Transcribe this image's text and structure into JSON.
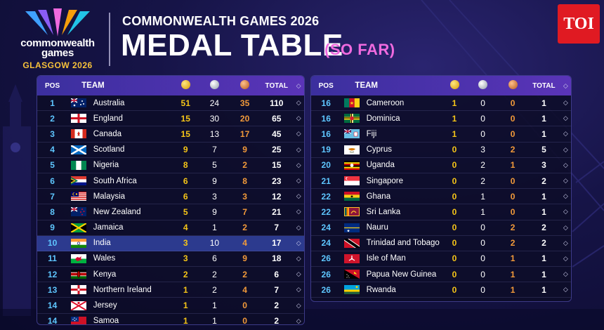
{
  "brand": {
    "line1": "commonwealth",
    "line2": "games",
    "line3": "GLASGOW 2026"
  },
  "header": {
    "subtitle": "COMMONWEALTH GAMES 2026",
    "title": "MEDAL TABLE",
    "tag": "(SO FAR)"
  },
  "publisher": {
    "badge": "TOI"
  },
  "columns": {
    "pos": "POS",
    "team": "TEAM",
    "total": "TOTAL",
    "sort": "◇"
  },
  "left_table": [
    {
      "pos": "1",
      "team": "Australia",
      "gold": "51",
      "silver": "24",
      "bronze": "35",
      "total": "110",
      "flag": "australia"
    },
    {
      "pos": "2",
      "team": "England",
      "gold": "15",
      "silver": "30",
      "bronze": "20",
      "total": "65",
      "flag": "england"
    },
    {
      "pos": "3",
      "team": "Canada",
      "gold": "15",
      "silver": "13",
      "bronze": "17",
      "total": "45",
      "flag": "canada"
    },
    {
      "pos": "4",
      "team": "Scotland",
      "gold": "9",
      "silver": "7",
      "bronze": "9",
      "total": "25",
      "flag": "scotland"
    },
    {
      "pos": "5",
      "team": "Nigeria",
      "gold": "8",
      "silver": "5",
      "bronze": "2",
      "total": "15",
      "flag": "nigeria"
    },
    {
      "pos": "6",
      "team": "South Africa",
      "gold": "6",
      "silver": "9",
      "bronze": "8",
      "total": "23",
      "flag": "south-africa"
    },
    {
      "pos": "7",
      "team": "Malaysia",
      "gold": "6",
      "silver": "3",
      "bronze": "3",
      "total": "12",
      "flag": "malaysia"
    },
    {
      "pos": "8",
      "team": "New Zealand",
      "gold": "5",
      "silver": "9",
      "bronze": "7",
      "total": "21",
      "flag": "new-zealand"
    },
    {
      "pos": "9",
      "team": "Jamaica",
      "gold": "4",
      "silver": "1",
      "bronze": "2",
      "total": "7",
      "flag": "jamaica"
    },
    {
      "pos": "10",
      "team": "India",
      "gold": "3",
      "silver": "10",
      "bronze": "4",
      "total": "17",
      "flag": "india",
      "highlight": true
    },
    {
      "pos": "11",
      "team": "Wales",
      "gold": "3",
      "silver": "6",
      "bronze": "9",
      "total": "18",
      "flag": "wales"
    },
    {
      "pos": "12",
      "team": "Kenya",
      "gold": "2",
      "silver": "2",
      "bronze": "2",
      "total": "6",
      "flag": "kenya"
    },
    {
      "pos": "13",
      "team": "Northern Ireland",
      "gold": "1",
      "silver": "2",
      "bronze": "4",
      "total": "7",
      "flag": "northern-ireland"
    },
    {
      "pos": "14",
      "team": "Jersey",
      "gold": "1",
      "silver": "1",
      "bronze": "0",
      "total": "2",
      "flag": "jersey"
    },
    {
      "pos": "14",
      "team": "Samoa",
      "gold": "1",
      "silver": "1",
      "bronze": "0",
      "total": "2",
      "flag": "samoa"
    }
  ],
  "right_table": [
    {
      "pos": "16",
      "team": "Cameroon",
      "gold": "1",
      "silver": "0",
      "bronze": "0",
      "total": "1",
      "flag": "cameroon"
    },
    {
      "pos": "16",
      "team": "Dominica",
      "gold": "1",
      "silver": "0",
      "bronze": "0",
      "total": "1",
      "flag": "dominica"
    },
    {
      "pos": "16",
      "team": "Fiji",
      "gold": "1",
      "silver": "0",
      "bronze": "0",
      "total": "1",
      "flag": "fiji"
    },
    {
      "pos": "19",
      "team": "Cyprus",
      "gold": "0",
      "silver": "3",
      "bronze": "2",
      "total": "5",
      "flag": "cyprus"
    },
    {
      "pos": "20",
      "team": "Uganda",
      "gold": "0",
      "silver": "2",
      "bronze": "1",
      "total": "3",
      "flag": "uganda"
    },
    {
      "pos": "21",
      "team": "Singapore",
      "gold": "0",
      "silver": "2",
      "bronze": "0",
      "total": "2",
      "flag": "singapore"
    },
    {
      "pos": "22",
      "team": "Ghana",
      "gold": "0",
      "silver": "1",
      "bronze": "0",
      "total": "1",
      "flag": "ghana"
    },
    {
      "pos": "22",
      "team": "Sri Lanka",
      "gold": "0",
      "silver": "1",
      "bronze": "0",
      "total": "1",
      "flag": "sri-lanka"
    },
    {
      "pos": "24",
      "team": "Nauru",
      "gold": "0",
      "silver": "0",
      "bronze": "2",
      "total": "2",
      "flag": "nauru"
    },
    {
      "pos": "24",
      "team": "Trinidad and Tobago",
      "gold": "0",
      "silver": "0",
      "bronze": "2",
      "total": "2",
      "flag": "trinidad-and-tobago"
    },
    {
      "pos": "26",
      "team": "Isle of Man",
      "gold": "0",
      "silver": "0",
      "bronze": "1",
      "total": "1",
      "flag": "isle-of-man"
    },
    {
      "pos": "26",
      "team": "Papua New Guinea",
      "gold": "0",
      "silver": "0",
      "bronze": "1",
      "total": "1",
      "flag": "papua-new-guinea"
    },
    {
      "pos": "26",
      "team": "Rwanda",
      "gold": "0",
      "silver": "0",
      "bronze": "1",
      "total": "1",
      "flag": "rwanda"
    }
  ],
  "colors": {
    "gold": "#f5c518",
    "bronze": "#f29a3a",
    "pos": "#5ec6ff",
    "accent_pink": "#f06adf",
    "highlight_row": "#2c3a8e"
  }
}
